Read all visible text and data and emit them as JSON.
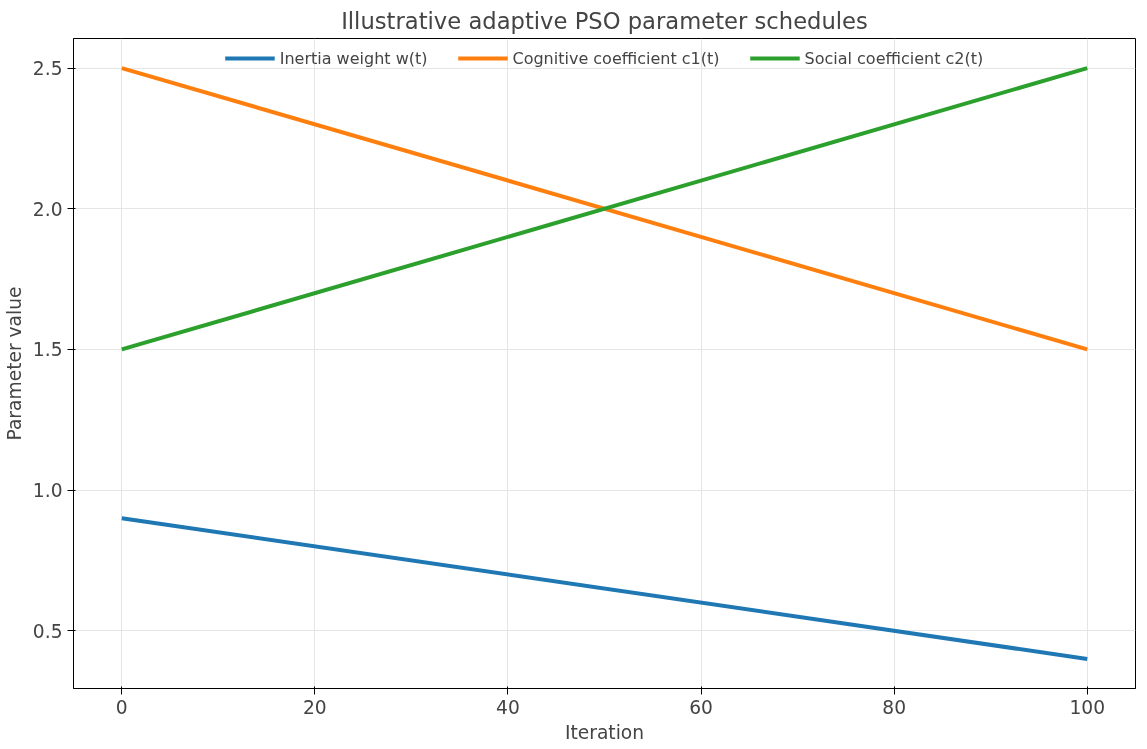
{
  "chart_data": {
    "type": "line",
    "title": "Illustrative adaptive PSO parameter schedules",
    "xlabel": "Iteration",
    "ylabel": "Parameter value",
    "x": [
      0,
      100
    ],
    "series": [
      {
        "name": "Inertia weight w(t)",
        "color": "#1f77b4",
        "values": [
          0.9,
          0.4
        ]
      },
      {
        "name": "Cognitive coefficient c1(t)",
        "color": "#ff7f0e",
        "values": [
          2.5,
          1.5
        ]
      },
      {
        "name": "Social coefficient c2(t)",
        "color": "#2ca02c",
        "values": [
          1.5,
          2.5
        ]
      }
    ],
    "xlim": [
      -5,
      105
    ],
    "ylim": [
      0.295,
      2.605
    ],
    "xticks": [
      0,
      20,
      40,
      60,
      80,
      100
    ],
    "yticks": [
      0.5,
      {
        "value": 1,
        "label": "1.0"
      },
      1.5,
      {
        "value": 2,
        "label": "2.0"
      },
      2.5
    ],
    "grid": true,
    "legend": "top",
    "marker": "none",
    "line_style": "solid"
  }
}
